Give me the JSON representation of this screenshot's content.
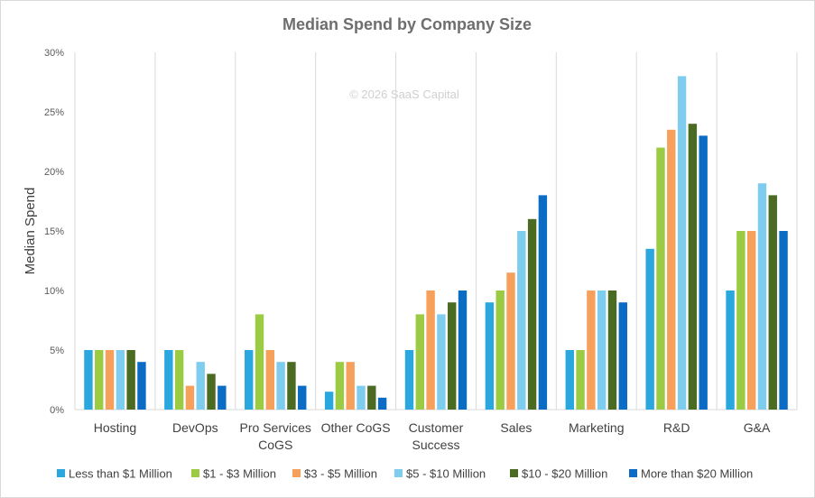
{
  "chart_data": {
    "type": "bar",
    "title": "Median Spend by Company Size",
    "ylabel": "Median Spend",
    "xlabel": "",
    "watermark": "© 2026 SaaS Capital",
    "ylim": [
      0,
      30
    ],
    "y_ticks": [
      "0%",
      "5%",
      "10%",
      "15%",
      "20%",
      "25%",
      "30%"
    ],
    "grid": "vertical separators between categories",
    "legend_position": "bottom",
    "categories": [
      [
        "Hosting"
      ],
      [
        "DevOps"
      ],
      [
        "Pro Services",
        "CoGS"
      ],
      [
        "Other CoGS"
      ],
      [
        "Customer",
        "Success"
      ],
      [
        "Sales"
      ],
      [
        "Marketing"
      ],
      [
        "R&D"
      ],
      [
        "G&A"
      ]
    ],
    "series": [
      {
        "name": "Less than $1 Million",
        "color": "#2aa7df",
        "values": [
          5,
          5,
          5,
          1.5,
          5,
          9,
          5,
          13.5,
          10
        ]
      },
      {
        "name": "$1 - $3 Million",
        "color": "#9acb42",
        "values": [
          5,
          5,
          8,
          4,
          8,
          10,
          5,
          22,
          15
        ]
      },
      {
        "name": "$3 - $5 Million",
        "color": "#f7a05c",
        "values": [
          5,
          2,
          5,
          4,
          10,
          11.5,
          10,
          23.5,
          15
        ]
      },
      {
        "name": "$5 - $10 Million",
        "color": "#7fcdee",
        "values": [
          5,
          4,
          4,
          2,
          8,
          15,
          10,
          28,
          19
        ]
      },
      {
        "name": "$10 - $20 Million",
        "color": "#4b6b23",
        "values": [
          5,
          3,
          4,
          2,
          9,
          16,
          10,
          24,
          18
        ]
      },
      {
        "name": "More than $20 Million",
        "color": "#0a6cc4",
        "values": [
          4,
          2,
          2,
          1,
          10,
          18,
          9,
          23,
          15
        ]
      }
    ]
  }
}
